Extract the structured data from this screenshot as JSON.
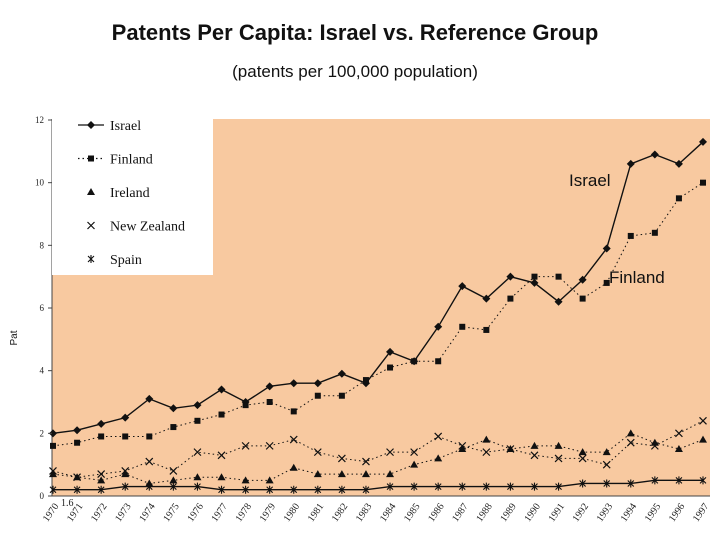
{
  "chart_data": {
    "type": "line",
    "title": "Patents Per Capita: Israel vs. Reference Group",
    "subtitle": "(patents per 100,000 population)",
    "ylabel": "Pat",
    "ylim": [
      0,
      12
    ],
    "yticks": [
      "0",
      "2",
      "4",
      "6",
      "8",
      "10",
      "12"
    ],
    "stray_label": "1.6",
    "categories": [
      "1970",
      "1971",
      "1972",
      "1973",
      "1974",
      "1975",
      "1976",
      "1977",
      "1978",
      "1979",
      "1980",
      "1981",
      "1982",
      "1983",
      "1984",
      "1985",
      "1986",
      "1987",
      "1988",
      "1989",
      "1990",
      "1991",
      "1992",
      "1993",
      "1994",
      "1995",
      "1996",
      "1997"
    ],
    "series": [
      {
        "name": "Israel",
        "marker": "diamond",
        "line": "solid",
        "values": [
          2.0,
          2.1,
          2.3,
          2.5,
          3.1,
          2.8,
          2.9,
          3.4,
          3.0,
          3.5,
          3.6,
          3.6,
          3.9,
          3.6,
          4.6,
          4.3,
          5.4,
          6.7,
          6.3,
          7.0,
          6.8,
          6.2,
          6.9,
          7.9,
          10.6,
          10.9,
          10.6,
          11.3
        ]
      },
      {
        "name": "Finland",
        "marker": "square",
        "line": "dotted",
        "values": [
          1.6,
          1.7,
          1.9,
          1.9,
          1.9,
          2.2,
          2.4,
          2.6,
          2.9,
          3.0,
          2.7,
          3.2,
          3.2,
          3.7,
          4.1,
          4.3,
          4.3,
          5.4,
          5.3,
          6.3,
          7.0,
          7.0,
          6.3,
          6.8,
          8.3,
          8.4,
          9.5,
          10.0
        ]
      },
      {
        "name": "Ireland",
        "marker": "triangle",
        "line": "dotted",
        "values": [
          0.7,
          0.6,
          0.5,
          0.7,
          0.4,
          0.5,
          0.6,
          0.6,
          0.5,
          0.5,
          0.9,
          0.7,
          0.7,
          0.7,
          0.7,
          1.0,
          1.2,
          1.5,
          1.8,
          1.5,
          1.6,
          1.6,
          1.4,
          1.4,
          2.0,
          1.7,
          1.5,
          1.8
        ]
      },
      {
        "name": "New Zealand",
        "marker": "x",
        "line": "dotted",
        "values": [
          0.8,
          0.6,
          0.7,
          0.8,
          1.1,
          0.8,
          1.4,
          1.3,
          1.6,
          1.6,
          1.8,
          1.4,
          1.2,
          1.1,
          1.4,
          1.4,
          1.9,
          1.6,
          1.4,
          1.5,
          1.3,
          1.2,
          1.2,
          1.0,
          1.7,
          1.6,
          2.0,
          2.4
        ]
      },
      {
        "name": "Spain",
        "marker": "star",
        "line": "solid",
        "values": [
          0.2,
          0.2,
          0.2,
          0.3,
          0.3,
          0.3,
          0.3,
          0.2,
          0.2,
          0.2,
          0.2,
          0.2,
          0.2,
          0.2,
          0.3,
          0.3,
          0.3,
          0.3,
          0.3,
          0.3,
          0.3,
          0.3,
          0.4,
          0.4,
          0.4,
          0.5,
          0.5,
          0.5
        ]
      }
    ],
    "annotations": [
      {
        "text": "Israel",
        "near_series": "Israel"
      },
      {
        "text": "Finland",
        "near_series": "Finland"
      }
    ],
    "legend": {
      "position": "top-left",
      "entries": [
        "Israel",
        "Finland",
        "Ireland",
        "New Zealand",
        "Spain"
      ]
    },
    "colors": {
      "plot_background": "#f8c9a0",
      "legend_background": "#ffffff",
      "line": "#111111"
    }
  }
}
